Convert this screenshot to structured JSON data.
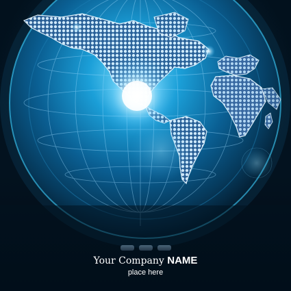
{
  "brand": {
    "company_prefix": "Your Company",
    "company_name": "NAME",
    "tagline": "place here"
  },
  "colors": {
    "background": "#02121f",
    "globe_glow": "#2fb4ef",
    "light_flare": "#ffffff",
    "map_dots": "#cfe9ff"
  },
  "icons": {
    "globe": "globe-illustration",
    "world_map": "dotted-world-map",
    "indicator": "pill-indicator"
  },
  "indicators": {
    "count": 3
  }
}
